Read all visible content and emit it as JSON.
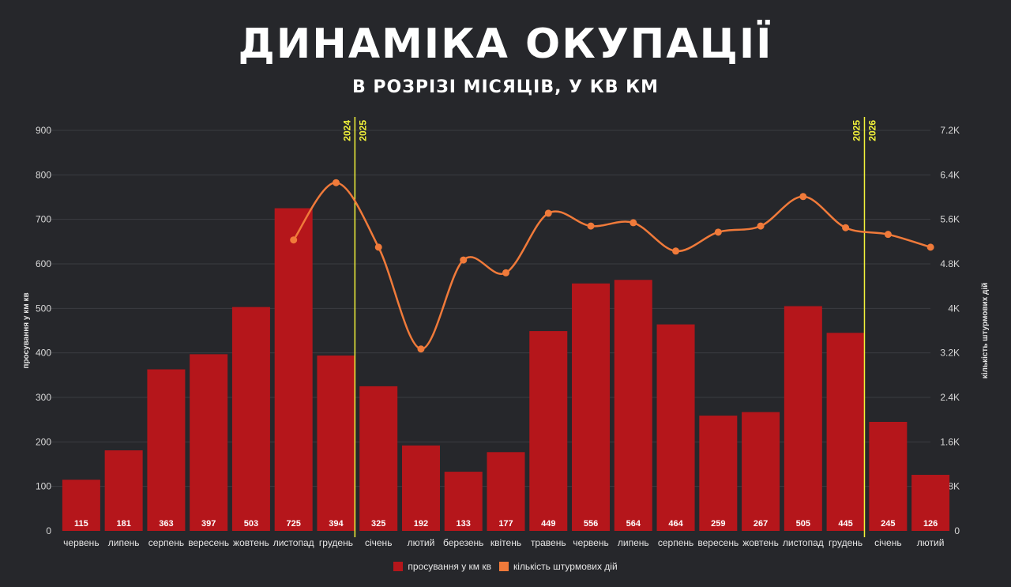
{
  "title": "ДИНАМІКА ОКУПАЦІЇ",
  "subtitle": "В РОЗРІЗІ МІСЯЦІВ, У КВ КМ",
  "chart_data": {
    "type": "bar+line",
    "categories": [
      "червень",
      "липень",
      "серпень",
      "вересень",
      "жовтень",
      "листопад",
      "грудень",
      "січень",
      "лютий",
      "березень",
      "квітень",
      "травень",
      "червень",
      "липень",
      "серпень",
      "вересень",
      "жовтень",
      "листопад",
      "грудень",
      "січень",
      "лютий"
    ],
    "series": [
      {
        "name": "просування у км кв",
        "type": "bar",
        "axis": "left",
        "color": "#b5161b",
        "values": [
          115,
          181,
          363,
          397,
          503,
          725,
          394,
          325,
          192,
          133,
          177,
          449,
          556,
          564,
          464,
          259,
          267,
          505,
          445,
          245,
          126
        ]
      },
      {
        "name": "кількість штурмових дій",
        "type": "line",
        "axis": "right",
        "color": "#f07a3a",
        "values": [
          null,
          null,
          null,
          null,
          null,
          5230,
          6260,
          5100,
          3270,
          4870,
          4640,
          5710,
          5480,
          5540,
          5030,
          5370,
          5480,
          6010,
          5450,
          5330,
          5100
        ]
      }
    ],
    "ylabel_left": "просування у км кв",
    "ylabel_right": "кількість штурмових дій",
    "ylim_left": [
      0,
      900
    ],
    "ylim_right": [
      0,
      7200
    ],
    "yticks_left": [
      "0",
      "100",
      "200",
      "300",
      "400",
      "500",
      "600",
      "700",
      "800",
      "900"
    ],
    "yticks_right": [
      "0",
      "0.8K",
      "1.6K",
      "2.4K",
      "3.2K",
      "4K",
      "4.8K",
      "5.6K",
      "6.4K",
      "7.2K"
    ],
    "year_dividers": [
      {
        "after_index": 6,
        "left_label": "2024",
        "right_label": "2025"
      },
      {
        "after_index": 18,
        "left_label": "2025",
        "right_label": "2026"
      }
    ],
    "divider_color": "#f2f23a",
    "grid": true,
    "legend_position": "bottom"
  }
}
